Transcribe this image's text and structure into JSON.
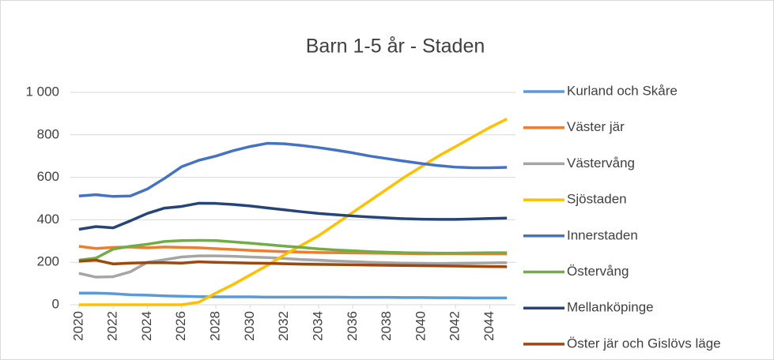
{
  "chart_data": {
    "type": "line",
    "title": "Barn 1-5 år - Staden",
    "x": [
      2020,
      2021,
      2022,
      2023,
      2024,
      2025,
      2026,
      2027,
      2028,
      2029,
      2030,
      2031,
      2032,
      2033,
      2034,
      2035,
      2036,
      2037,
      2038,
      2039,
      2040,
      2041,
      2042,
      2043,
      2044,
      2045
    ],
    "xlim": [
      2019.5,
      2045.5
    ],
    "xticks": [
      2020,
      2022,
      2024,
      2026,
      2028,
      2030,
      2032,
      2034,
      2036,
      2038,
      2040,
      2042,
      2044
    ],
    "ylim": [
      0,
      1000
    ],
    "yticks": [
      0,
      200,
      400,
      600,
      800,
      {
        "value": 1000,
        "label": "1 000"
      }
    ],
    "grid": true,
    "legend": "right",
    "series": [
      {
        "name": "Kurland och Skåre",
        "color": "#5b9bd5",
        "values": [
          55,
          55,
          52,
          47,
          45,
          42,
          40,
          38,
          37,
          37,
          37,
          36,
          36,
          36,
          36,
          36,
          35,
          35,
          35,
          34,
          34,
          33,
          33,
          32,
          32,
          32
        ]
      },
      {
        "name": "Väster jär",
        "color": "#ed7d31",
        "values": [
          275,
          265,
          270,
          272,
          268,
          272,
          270,
          268,
          264,
          260,
          256,
          253,
          250,
          248,
          246,
          245,
          244,
          243,
          242,
          241,
          240,
          240,
          240,
          240,
          240,
          240
        ]
      },
      {
        "name": "Västervång",
        "color": "#a5a5a5",
        "values": [
          148,
          130,
          132,
          155,
          200,
          212,
          225,
          230,
          230,
          228,
          225,
          222,
          218,
          213,
          210,
          206,
          203,
          200,
          198,
          196,
          195,
          194,
          195,
          196,
          197,
          198
        ]
      },
      {
        "name": "Sjöstaden",
        "color": "#ffc000",
        "values": [
          0,
          0,
          0,
          0,
          0,
          0,
          0,
          12,
          55,
          95,
          140,
          185,
          235,
          280,
          325,
          380,
          435,
          490,
          545,
          600,
          650,
          700,
          745,
          790,
          835,
          875
        ]
      },
      {
        "name": "Innerstaden",
        "color": "#4472c4",
        "values": [
          512,
          518,
          510,
          512,
          545,
          595,
          650,
          680,
          700,
          725,
          745,
          760,
          758,
          750,
          740,
          728,
          715,
          700,
          688,
          676,
          665,
          655,
          648,
          645,
          645,
          647
        ]
      },
      {
        "name": "Östervång",
        "color": "#70ad47",
        "values": [
          210,
          220,
          262,
          275,
          285,
          298,
          302,
          303,
          302,
          296,
          290,
          283,
          276,
          270,
          263,
          258,
          254,
          250,
          247,
          245,
          244,
          243,
          243,
          244,
          245,
          245
        ]
      },
      {
        "name": "Mellanköpinge",
        "color": "#264478",
        "values": [
          355,
          368,
          362,
          395,
          430,
          455,
          463,
          478,
          477,
          472,
          465,
          456,
          447,
          438,
          430,
          424,
          418,
          413,
          409,
          405,
          403,
          402,
          402,
          404,
          406,
          408
        ]
      },
      {
        "name": "Öster jär och Gislövs läge",
        "color": "#9e480e",
        "values": [
          205,
          210,
          192,
          196,
          198,
          198,
          196,
          202,
          200,
          198,
          196,
          195,
          193,
          191,
          190,
          189,
          188,
          187,
          186,
          185,
          184,
          183,
          182,
          181,
          180,
          179
        ]
      }
    ]
  }
}
